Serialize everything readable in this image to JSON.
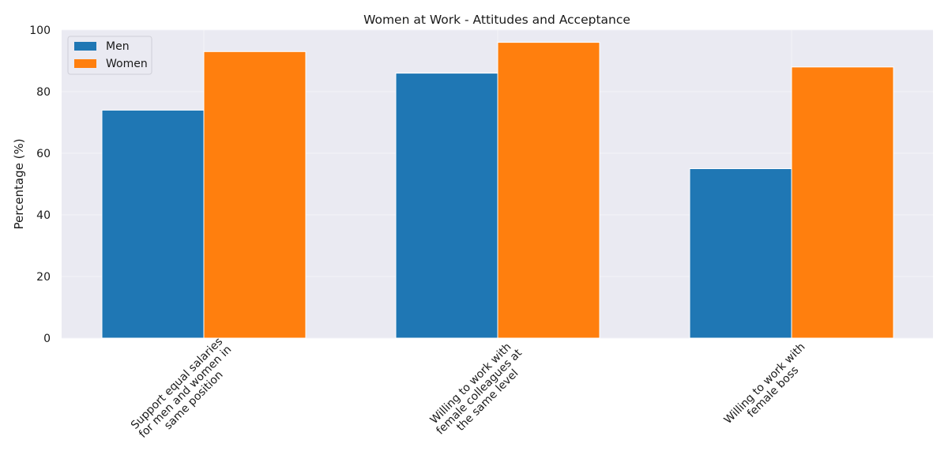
{
  "chart_data": {
    "type": "bar",
    "title": "Women at Work - Attitudes and Acceptance",
    "xlabel": "",
    "ylabel": "Percentage (%)",
    "ylim": [
      0,
      100
    ],
    "yticks": [
      0,
      20,
      40,
      60,
      80,
      100
    ],
    "categories": [
      [
        "Support equal salaries",
        "for men and women in",
        "same position"
      ],
      [
        "Willing to work with",
        "female colleagues at",
        "the same level"
      ],
      [
        "Willing to work with",
        "female boss"
      ]
    ],
    "series": [
      {
        "name": "Men",
        "color": "#1f77b4",
        "values": [
          74,
          86,
          55
        ]
      },
      {
        "name": "Women",
        "color": "#ff7f0e",
        "values": [
          93,
          96,
          88
        ]
      }
    ],
    "grid": true,
    "legend_position": "top-left",
    "background": "#eaeaf2"
  }
}
